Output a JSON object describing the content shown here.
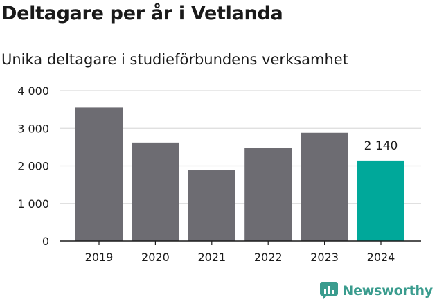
{
  "header": {
    "title": "Deltagare per år i Vetlanda",
    "subtitle": "Unika deltagare i studieförbundens verksamhet"
  },
  "brand": {
    "name": "Newsworthy",
    "icon": "bar-chart-logo-icon",
    "color": "#3a9c8e"
  },
  "chart_data": {
    "type": "bar",
    "title": "Deltagare per år i Vetlanda",
    "subtitle": "Unika deltagare i studieförbundens verksamhet",
    "categories": [
      "2019",
      "2020",
      "2021",
      "2022",
      "2023",
      "2024"
    ],
    "values": [
      3550,
      2620,
      1880,
      2470,
      2880,
      2140
    ],
    "ylim": [
      0,
      4000
    ],
    "yticks": [
      0,
      1000,
      2000,
      3000,
      4000
    ],
    "ytick_labels": [
      "0",
      "1 000",
      "2 000",
      "3 000",
      "4 000"
    ],
    "xlabel": "",
    "ylabel": "",
    "grid": true,
    "colors": {
      "default_bar": "#6d6c72",
      "highlight_bar": "#00a89a",
      "grid": "#dcdcdc",
      "axis": "#1a1a1a"
    },
    "highlight_index": 5,
    "annotations": [
      {
        "category": "2024",
        "label": "2 140"
      }
    ]
  }
}
